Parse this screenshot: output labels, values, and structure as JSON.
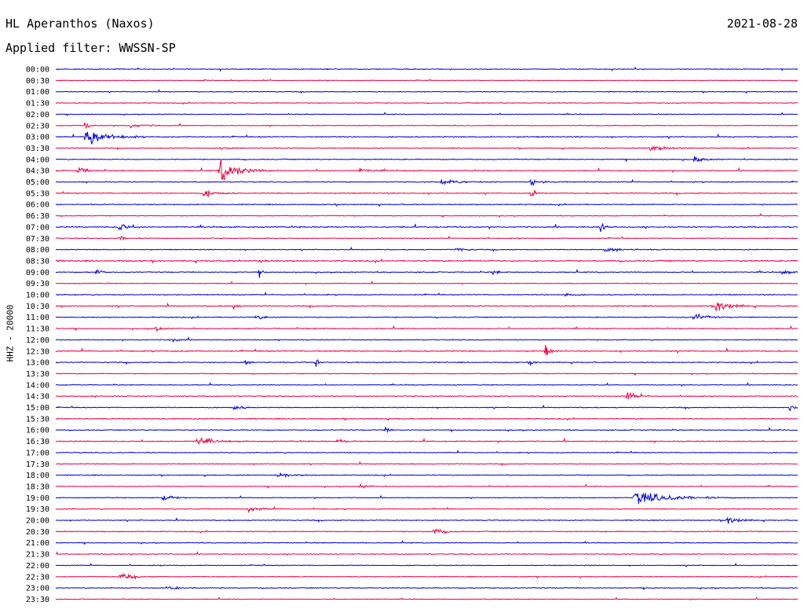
{
  "header": {
    "station": "HL Aperanthos (Naxos)",
    "filter": "Applied filter: WWSSN-SP",
    "date": "2021-08-28"
  },
  "chart_data": {
    "type": "line",
    "title": "HL Aperanthos (Naxos)",
    "subtitle": "Applied filter: WWSSN-SP",
    "date": "2021-08-28",
    "ylabel": "HHZ - 20000",
    "trace_colors": [
      "#0000dd",
      "#ee0044"
    ],
    "row_labels": [
      "00:00",
      "00:30",
      "01:00",
      "01:30",
      "02:00",
      "02:30",
      "03:00",
      "03:30",
      "04:00",
      "04:30",
      "05:00",
      "05:30",
      "06:00",
      "06:30",
      "07:00",
      "07:30",
      "08:00",
      "08:30",
      "09:00",
      "09:30",
      "10:00",
      "10:30",
      "11:00",
      "11:30",
      "12:00",
      "12:30",
      "13:00",
      "13:30",
      "14:00",
      "14:30",
      "15:00",
      "15:30",
      "16:00",
      "16:30",
      "17:00",
      "17:30",
      "18:00",
      "18:30",
      "19:00",
      "19:30",
      "20:00",
      "20:30",
      "21:00",
      "21:30",
      "22:00",
      "22:30",
      "23:00",
      "23:30"
    ],
    "noise": [
      1,
      0.8,
      0.9,
      0.9,
      0.8,
      0.9,
      1.2,
      0.9,
      1.1,
      1.2,
      1.1,
      1.1,
      1.1,
      0.9,
      1.4,
      1,
      1,
      1.5,
      1.1,
      0.9,
      1.1,
      1.2,
      1.1,
      1.1,
      1,
      1.3,
      1.1,
      0.9,
      0.9,
      1,
      1,
      1.1,
      1,
      1.2,
      1,
      0.9,
      1,
      0.9,
      0.9,
      1,
      1,
      1.1,
      0.9,
      1,
      0.9,
      0.9,
      1,
      0.8
    ],
    "events": [
      {
        "row": 6,
        "x": 0.04,
        "amp": 18,
        "dur": 0.02
      },
      {
        "row": 5,
        "x": 0.04,
        "amp": 6,
        "dur": 0.004
      },
      {
        "row": 5,
        "x": 0.1,
        "amp": 2.5,
        "dur": 0.02
      },
      {
        "row": 7,
        "x": 0.22,
        "amp": 3,
        "dur": 0.01
      },
      {
        "row": 7,
        "x": 0.8,
        "amp": 5,
        "dur": 0.015
      },
      {
        "row": 8,
        "x": 0.86,
        "amp": 5,
        "dur": 0.01
      },
      {
        "row": 9,
        "x": 0.03,
        "amp": 5,
        "dur": 0.01
      },
      {
        "row": 9,
        "x": 0.22,
        "amp": 16,
        "dur": 0.02
      },
      {
        "row": 9,
        "x": 0.41,
        "amp": 3,
        "dur": 0.01
      },
      {
        "row": 10,
        "x": 0.52,
        "amp": 3,
        "dur": 0.02
      },
      {
        "row": 10,
        "x": 0.64,
        "amp": 5,
        "dur": 0.01
      },
      {
        "row": 11,
        "x": 0.2,
        "amp": 5,
        "dur": 0.012
      },
      {
        "row": 11,
        "x": 0.64,
        "amp": 7,
        "dur": 0.004
      },
      {
        "row": 14,
        "x": 0.085,
        "amp": 6,
        "dur": 0.01
      },
      {
        "row": 14,
        "x": 0.735,
        "amp": 9,
        "dur": 0.005
      },
      {
        "row": 15,
        "x": 0.085,
        "amp": 3,
        "dur": 0.008
      },
      {
        "row": 16,
        "x": 0.54,
        "amp": 3,
        "dur": 0.01
      },
      {
        "row": 16,
        "x": 0.74,
        "amp": 3,
        "dur": 0.02
      },
      {
        "row": 17,
        "x": 0.275,
        "amp": 6,
        "dur": 0.003
      },
      {
        "row": 18,
        "x": 0.055,
        "amp": 6,
        "dur": 0.004
      },
      {
        "row": 18,
        "x": 0.275,
        "amp": 10,
        "dur": 0.003
      },
      {
        "row": 18,
        "x": 0.59,
        "amp": 5,
        "dur": 0.004
      },
      {
        "row": 18,
        "x": 0.98,
        "amp": 6,
        "dur": 0.005
      },
      {
        "row": 20,
        "x": 0.685,
        "amp": 3,
        "dur": 0.008
      },
      {
        "row": 21,
        "x": 0.24,
        "amp": 5,
        "dur": 0.004
      },
      {
        "row": 21,
        "x": 0.89,
        "amp": 9,
        "dur": 0.015
      },
      {
        "row": 22,
        "x": 0.27,
        "amp": 3,
        "dur": 0.01
      },
      {
        "row": 22,
        "x": 0.86,
        "amp": 6,
        "dur": 0.012
      },
      {
        "row": 23,
        "x": 0.135,
        "amp": 4,
        "dur": 0.006
      },
      {
        "row": 24,
        "x": 0.155,
        "amp": 4,
        "dur": 0.008
      },
      {
        "row": 25,
        "x": 0.66,
        "amp": 10,
        "dur": 0.004
      },
      {
        "row": 26,
        "x": 0.255,
        "amp": 4,
        "dur": 0.005
      },
      {
        "row": 26,
        "x": 0.35,
        "amp": 9,
        "dur": 0.004
      },
      {
        "row": 26,
        "x": 0.64,
        "amp": 3,
        "dur": 0.005
      },
      {
        "row": 29,
        "x": 0.77,
        "amp": 6,
        "dur": 0.01
      },
      {
        "row": 30,
        "x": 0.24,
        "amp": 3,
        "dur": 0.01
      },
      {
        "row": 30,
        "x": 0.99,
        "amp": 8,
        "dur": 0.004
      },
      {
        "row": 32,
        "x": 0.445,
        "amp": 4,
        "dur": 0.005
      },
      {
        "row": 33,
        "x": 0.19,
        "amp": 6,
        "dur": 0.015
      },
      {
        "row": 33,
        "x": 0.38,
        "amp": 3,
        "dur": 0.01
      },
      {
        "row": 36,
        "x": 0.3,
        "amp": 3,
        "dur": 0.015
      },
      {
        "row": 37,
        "x": 0.41,
        "amp": 2.5,
        "dur": 0.01
      },
      {
        "row": 38,
        "x": 0.145,
        "amp": 7,
        "dur": 0.01
      },
      {
        "row": 38,
        "x": 0.78,
        "amp": 9,
        "dur": 0.04
      },
      {
        "row": 39,
        "x": 0.26,
        "amp": 3,
        "dur": 0.015
      },
      {
        "row": 40,
        "x": 0.905,
        "amp": 6,
        "dur": 0.012
      },
      {
        "row": 41,
        "x": 0.51,
        "amp": 5,
        "dur": 0.01
      },
      {
        "row": 45,
        "x": 0.085,
        "amp": 5,
        "dur": 0.015
      },
      {
        "row": 46,
        "x": 0.15,
        "amp": 4,
        "dur": 0.012
      }
    ]
  }
}
